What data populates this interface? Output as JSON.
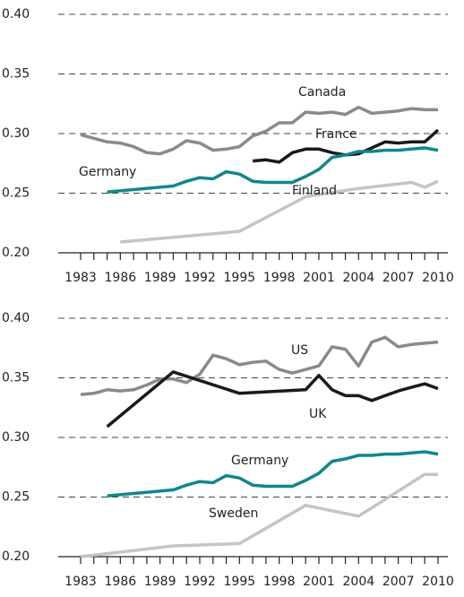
{
  "chart_data": [
    {
      "type": "line",
      "xlim": [
        1983,
        2010
      ],
      "xticks": [
        1983,
        1986,
        1989,
        1992,
        1995,
        1998,
        2001,
        2004,
        2007,
        2010
      ],
      "ylim": [
        0.2,
        0.4
      ],
      "yticks": [
        {
          "value": 0.2,
          "label": "0.20"
        },
        {
          "value": 0.25,
          "label": "0.25"
        },
        {
          "value": 0.3,
          "label": "0.30"
        },
        {
          "value": 0.35,
          "label": "0.35"
        },
        {
          "value": 0.4,
          "label": "0.40"
        }
      ],
      "grid": true,
      "series": [
        {
          "name": "Canada",
          "color": "#8a8a8a",
          "x": [
            1983,
            1984,
            1985,
            1986,
            1987,
            1988,
            1989,
            1990,
            1991,
            1992,
            1993,
            1994,
            1995,
            1996,
            1997,
            1998,
            1999,
            2000,
            2001,
            2002,
            2003,
            2004,
            2005,
            2006,
            2007,
            2008,
            2009,
            2010
          ],
          "values": [
            0.299,
            0.296,
            0.293,
            0.292,
            0.289,
            0.284,
            0.283,
            0.287,
            0.294,
            0.292,
            0.286,
            0.287,
            0.289,
            0.298,
            0.302,
            0.309,
            0.309,
            0.318,
            0.317,
            0.318,
            0.316,
            0.322,
            0.317,
            0.318,
            0.319,
            0.321,
            0.32,
            0.32
          ]
        },
        {
          "name": "France",
          "color": "#1a1a1a",
          "x": [
            1996,
            1997,
            1998,
            1999,
            2000,
            2001,
            2002,
            2003,
            2004,
            2005,
            2006,
            2007,
            2008,
            2009,
            2010
          ],
          "values": [
            0.277,
            0.278,
            0.276,
            0.284,
            0.287,
            0.287,
            0.284,
            0.282,
            0.283,
            0.288,
            0.293,
            0.292,
            0.293,
            0.293,
            0.303
          ]
        },
        {
          "name": "Germany",
          "color": "#13868a",
          "x": [
            1985,
            1990,
            1991,
            1992,
            1993,
            1994,
            1995,
            1996,
            1997,
            1998,
            1999,
            2000,
            2001,
            2002,
            2003,
            2004,
            2005,
            2006,
            2007,
            2008,
            2009,
            2010
          ],
          "values": [
            0.251,
            0.256,
            0.26,
            0.263,
            0.262,
            0.268,
            0.266,
            0.26,
            0.259,
            0.259,
            0.259,
            0.264,
            0.27,
            0.28,
            0.282,
            0.285,
            0.285,
            0.286,
            0.286,
            0.287,
            0.288,
            0.286
          ]
        },
        {
          "name": "Finland",
          "color": "#c4c4c4",
          "x": [
            1986,
            1995,
            2000,
            2004,
            2008,
            2009,
            2010
          ],
          "values": [
            0.209,
            0.218,
            0.247,
            0.254,
            0.259,
            0.255,
            0.26
          ]
        }
      ]
    },
    {
      "type": "line",
      "xlim": [
        1983,
        2010
      ],
      "xticks": [
        1983,
        1986,
        1989,
        1992,
        1995,
        1998,
        2001,
        2004,
        2007,
        2010
      ],
      "ylim": [
        0.2,
        0.4
      ],
      "yticks": [
        {
          "value": 0.2,
          "label": "0.20"
        },
        {
          "value": 0.25,
          "label": "0.25"
        },
        {
          "value": 0.3,
          "label": "0.30"
        },
        {
          "value": 0.35,
          "label": "0.35"
        },
        {
          "value": 0.4,
          "label": "0.40"
        }
      ],
      "grid": true,
      "series": [
        {
          "name": "US",
          "color": "#8a8a8a",
          "x": [
            1983,
            1984,
            1985,
            1986,
            1987,
            1988,
            1989,
            1990,
            1991,
            1992,
            1993,
            1994,
            1995,
            1996,
            1997,
            1998,
            1999,
            2000,
            2001,
            2002,
            2003,
            2004,
            2005,
            2006,
            2007,
            2008,
            2009,
            2010
          ],
          "values": [
            0.336,
            0.337,
            0.34,
            0.339,
            0.34,
            0.344,
            0.349,
            0.349,
            0.346,
            0.353,
            0.369,
            0.366,
            0.361,
            0.363,
            0.364,
            0.357,
            0.354,
            0.357,
            0.36,
            0.376,
            0.374,
            0.36,
            0.38,
            0.384,
            0.376,
            0.378,
            0.379,
            0.38
          ]
        },
        {
          "name": "UK",
          "color": "#1a1a1a",
          "x": [
            1985,
            1990,
            1995,
            2000,
            2001,
            2002,
            2003,
            2004,
            2005,
            2006,
            2007,
            2008,
            2009,
            2010
          ],
          "values": [
            0.309,
            0.355,
            0.337,
            0.34,
            0.352,
            0.34,
            0.335,
            0.335,
            0.331,
            0.335,
            0.339,
            0.342,
            0.345,
            0.341
          ]
        },
        {
          "name": "Germany",
          "color": "#13868a",
          "x": [
            1985,
            1990,
            1991,
            1992,
            1993,
            1994,
            1995,
            1996,
            1997,
            1998,
            1999,
            2000,
            2001,
            2002,
            2003,
            2004,
            2005,
            2006,
            2007,
            2008,
            2009,
            2010
          ],
          "values": [
            0.251,
            0.256,
            0.26,
            0.263,
            0.262,
            0.268,
            0.266,
            0.26,
            0.259,
            0.259,
            0.259,
            0.264,
            0.27,
            0.28,
            0.282,
            0.285,
            0.285,
            0.286,
            0.286,
            0.287,
            0.288,
            0.286
          ]
        },
        {
          "name": "Sweden",
          "color": "#c4c4c4",
          "x": [
            1983,
            1990,
            1995,
            2000,
            2004,
            2009,
            2010
          ],
          "values": [
            0.2,
            0.209,
            0.211,
            0.243,
            0.234,
            0.269,
            0.269
          ]
        }
      ]
    }
  ]
}
